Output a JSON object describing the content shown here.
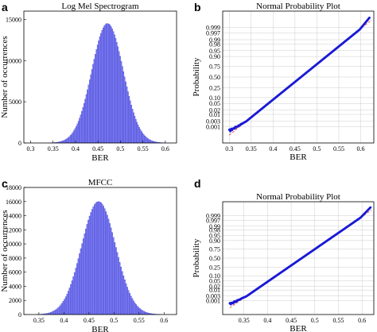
{
  "colors": {
    "bar": "#7b7bf0",
    "bar_edge": "#3d3dd0",
    "point": "#1a1ad6",
    "ref_line": "#e03030",
    "grid": "#cccccc"
  },
  "chart_data": [
    {
      "panel": "a",
      "type": "bar",
      "title": "Log Mel Spectrogram",
      "xlabel": "BER",
      "ylabel": "Number of occurrences",
      "xlim": [
        0.285,
        0.625
      ],
      "ylim": [
        0,
        16000
      ],
      "xticks": [
        "0.3",
        "0.35",
        "0.4",
        "0.45",
        "0.5",
        "0.55",
        "0.6"
      ],
      "xtick_values": [
        0.3,
        0.35,
        0.4,
        0.45,
        0.5,
        0.55,
        0.6
      ],
      "yticks": [
        "0",
        "5000",
        "10000",
        "15000"
      ],
      "ytick_values": [
        0,
        5000,
        10000,
        15000
      ],
      "distribution": {
        "shape": "gaussian",
        "mean": 0.47,
        "sd": 0.035,
        "peak": 14500,
        "bin_width": 0.0025
      },
      "grid": false
    },
    {
      "panel": "b",
      "type": "scatter",
      "title": "Normal Probability Plot",
      "xlabel": "BER",
      "ylabel": "Probability",
      "xlim": [
        0.285,
        0.63
      ],
      "xticks": [
        "0.3",
        "0.35",
        "0.4",
        "0.45",
        "0.5",
        "0.55",
        "0.6"
      ],
      "xtick_values": [
        0.3,
        0.35,
        0.4,
        0.45,
        0.5,
        0.55,
        0.6
      ],
      "yticks": [
        "0.999",
        "0.997",
        "0.99",
        "0.98",
        "0.95",
        "0.90",
        "0.75",
        "0.50",
        "0.25",
        "0.10",
        "0.05",
        "0.02",
        "0.01",
        "0.003",
        "0.001"
      ],
      "ytick_values": [
        0.999,
        0.997,
        0.99,
        0.98,
        0.95,
        0.9,
        0.75,
        0.5,
        0.25,
        0.1,
        0.05,
        0.02,
        0.01,
        0.003,
        0.001
      ],
      "reference_line": {
        "from_x": 0.3,
        "to_x": 0.625
      },
      "points_range": [
        0.3,
        0.62
      ],
      "grid": true
    },
    {
      "panel": "c",
      "type": "bar",
      "title": "MFCC",
      "xlabel": "BER",
      "ylabel": "Number of occurrences",
      "xlim": [
        0.32,
        0.625
      ],
      "ylim": [
        0,
        18000
      ],
      "xticks": [
        "0.35",
        "0.4",
        "0.45",
        "0.5",
        "0.55",
        "0.6"
      ],
      "xtick_values": [
        0.35,
        0.4,
        0.45,
        0.5,
        0.55,
        0.6
      ],
      "yticks": [
        "0",
        "2000",
        "4000",
        "6000",
        "8000",
        "10000",
        "12000",
        "14000",
        "16000",
        "18000"
      ],
      "ytick_values": [
        0,
        2000,
        4000,
        6000,
        8000,
        10000,
        12000,
        14000,
        16000,
        18000
      ],
      "distribution": {
        "shape": "gaussian",
        "mean": 0.468,
        "sd": 0.034,
        "peak": 16000,
        "bin_width": 0.0025
      },
      "grid": false
    },
    {
      "panel": "d",
      "type": "scatter",
      "title": "Normal Probability Plot",
      "xlabel": "BER",
      "ylabel": "Probability",
      "xlim": [
        0.305,
        0.625
      ],
      "xticks": [
        "0.35",
        "0.4",
        "0.45",
        "0.5",
        "0.55",
        "0.6"
      ],
      "xtick_values": [
        0.35,
        0.4,
        0.45,
        0.5,
        0.55,
        0.6
      ],
      "yticks": [
        "0.999",
        "0.997",
        "0.99",
        "0.98",
        "0.95",
        "0.90",
        "0.75",
        "0.50",
        "0.25",
        "0.10",
        "0.05",
        "0.02",
        "0.01",
        "0.003",
        "0.001"
      ],
      "ytick_values": [
        0.999,
        0.997,
        0.99,
        0.98,
        0.95,
        0.9,
        0.75,
        0.5,
        0.25,
        0.1,
        0.05,
        0.02,
        0.01,
        0.003,
        0.001
      ],
      "reference_line": {
        "from_x": 0.32,
        "to_x": 0.62
      },
      "points_range": [
        0.32,
        0.618
      ],
      "grid": true
    }
  ]
}
